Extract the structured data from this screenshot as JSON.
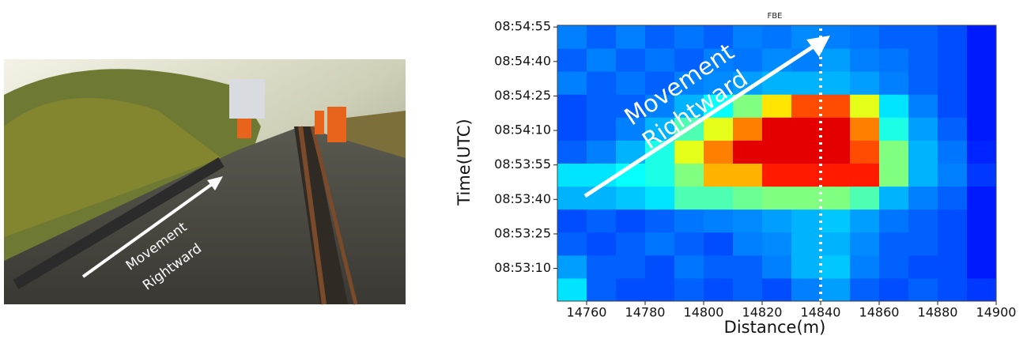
{
  "chart_data": {
    "type": "heatmap",
    "title": "FBE",
    "xlabel": "Distance(m)",
    "ylabel": "Time(UTC)",
    "xlim": [
      14750,
      14900
    ],
    "xticks": [
      14760,
      14780,
      14800,
      14820,
      14840,
      14860,
      14880,
      14900
    ],
    "yticks": [
      "08:53:10",
      "08:53:25",
      "08:53:40",
      "08:53:55",
      "08:54:10",
      "08:54:25",
      "08:54:40",
      "08:54:55"
    ],
    "vline": 14840,
    "annotation": [
      "Movement",
      "Rightward"
    ],
    "photo_annotation": [
      "Movement",
      "Rightward"
    ],
    "z": [
      [
        0.35,
        0.22,
        0.2,
        0.2,
        0.22,
        0.2,
        0.22,
        0.2,
        0.25,
        0.28,
        0.22,
        0.2,
        0.22,
        0.2,
        0.18
      ],
      [
        0.28,
        0.22,
        0.22,
        0.2,
        0.24,
        0.22,
        0.22,
        0.25,
        0.3,
        0.32,
        0.25,
        0.22,
        0.2,
        0.2,
        0.15
      ],
      [
        0.22,
        0.2,
        0.22,
        0.24,
        0.22,
        0.2,
        0.25,
        0.26,
        0.3,
        0.3,
        0.26,
        0.22,
        0.22,
        0.2,
        0.15
      ],
      [
        0.2,
        0.22,
        0.2,
        0.22,
        0.24,
        0.25,
        0.26,
        0.28,
        0.3,
        0.32,
        0.28,
        0.24,
        0.22,
        0.2,
        0.15
      ],
      [
        0.3,
        0.3,
        0.32,
        0.35,
        0.45,
        0.45,
        0.48,
        0.5,
        0.5,
        0.5,
        0.45,
        0.3,
        0.25,
        0.22,
        0.15
      ],
      [
        0.35,
        0.35,
        0.38,
        0.4,
        0.5,
        0.7,
        0.7,
        0.85,
        0.85,
        0.85,
        0.85,
        0.5,
        0.3,
        0.25,
        0.18
      ],
      [
        0.22,
        0.25,
        0.3,
        0.4,
        0.6,
        0.75,
        0.9,
        0.9,
        0.9,
        0.9,
        0.8,
        0.5,
        0.3,
        0.24,
        0.16
      ],
      [
        0.2,
        0.22,
        0.25,
        0.3,
        0.45,
        0.6,
        0.75,
        0.9,
        0.9,
        0.9,
        0.75,
        0.4,
        0.28,
        0.22,
        0.15
      ],
      [
        0.2,
        0.22,
        0.22,
        0.25,
        0.3,
        0.38,
        0.5,
        0.65,
        0.8,
        0.8,
        0.6,
        0.35,
        0.25,
        0.2,
        0.15
      ],
      [
        0.25,
        0.22,
        0.24,
        0.22,
        0.25,
        0.26,
        0.28,
        0.3,
        0.3,
        0.3,
        0.28,
        0.25,
        0.22,
        0.2,
        0.15
      ],
      [
        0.22,
        0.25,
        0.22,
        0.24,
        0.22,
        0.25,
        0.24,
        0.26,
        0.25,
        0.28,
        0.25,
        0.24,
        0.22,
        0.2,
        0.15
      ],
      [
        0.25,
        0.22,
        0.25,
        0.22,
        0.24,
        0.22,
        0.25,
        0.24,
        0.26,
        0.25,
        0.24,
        0.22,
        0.22,
        0.2,
        0.15
      ]
    ]
  }
}
